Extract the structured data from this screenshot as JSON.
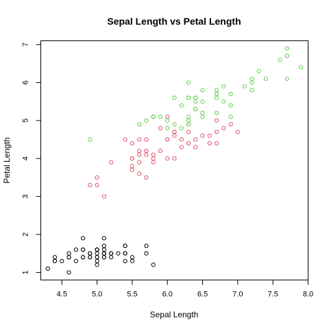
{
  "chart_data": {
    "type": "scatter",
    "title": "Sepal Length vs Petal Length",
    "xlabel": "Sepal Length",
    "ylabel": "Petal Length",
    "xlim": [
      4.2,
      8.0
    ],
    "ylim": [
      0.8,
      7.1
    ],
    "xticks": [
      4.5,
      5.0,
      5.5,
      6.0,
      6.5,
      7.0,
      7.5,
      8.0
    ],
    "xtick_labels": [
      "4.5",
      "5.0",
      "5.5",
      "6.0",
      "6.5",
      "7.0",
      "7.5",
      "8.0"
    ],
    "yticks": [
      1,
      2,
      3,
      4,
      5,
      6,
      7
    ],
    "ytick_labels": [
      "1",
      "2",
      "3",
      "4",
      "5",
      "6",
      "7"
    ],
    "grid": false,
    "series": [
      {
        "color": "#000000",
        "marker": "open-circle",
        "x": [
          5.1,
          4.9,
          4.7,
          4.6,
          5.0,
          5.4,
          4.6,
          5.0,
          4.4,
          4.9,
          5.4,
          4.8,
          4.8,
          4.3,
          5.8,
          5.7,
          5.4,
          5.1,
          5.7,
          5.1,
          5.4,
          5.1,
          4.6,
          5.1,
          4.8,
          5.0,
          5.0,
          5.2,
          5.2,
          4.7,
          4.8,
          5.4,
          5.2,
          5.5,
          4.9,
          5.0,
          5.5,
          4.9,
          4.4,
          5.1,
          5.0,
          4.5,
          4.4,
          5.0,
          5.1,
          4.8,
          5.1,
          4.6,
          5.3,
          5.0
        ],
        "y": [
          1.4,
          1.4,
          1.3,
          1.5,
          1.4,
          1.7,
          1.4,
          1.5,
          1.4,
          1.5,
          1.5,
          1.6,
          1.4,
          1.1,
          1.2,
          1.5,
          1.3,
          1.4,
          1.7,
          1.5,
          1.7,
          1.5,
          1.0,
          1.7,
          1.9,
          1.6,
          1.6,
          1.5,
          1.4,
          1.6,
          1.6,
          1.5,
          1.5,
          1.4,
          1.5,
          1.2,
          1.3,
          1.4,
          1.3,
          1.5,
          1.3,
          1.3,
          1.3,
          1.6,
          1.9,
          1.4,
          1.6,
          1.4,
          1.5,
          1.4
        ]
      },
      {
        "color": "#DF536B",
        "marker": "open-circle",
        "x": [
          7.0,
          6.4,
          6.9,
          5.5,
          6.5,
          5.7,
          6.3,
          4.9,
          6.6,
          5.2,
          5.0,
          5.9,
          6.0,
          6.1,
          5.6,
          6.7,
          5.6,
          5.8,
          6.2,
          5.6,
          5.9,
          6.1,
          6.3,
          6.1,
          6.4,
          6.6,
          6.8,
          6.7,
          6.0,
          5.7,
          5.5,
          5.5,
          5.8,
          6.0,
          5.4,
          6.0,
          6.7,
          6.3,
          5.6,
          5.5,
          5.5,
          6.1,
          5.8,
          5.0,
          5.6,
          5.7,
          5.7,
          6.2,
          5.1,
          5.7
        ],
        "y": [
          4.7,
          4.5,
          4.9,
          4.0,
          4.6,
          4.5,
          4.7,
          3.3,
          4.6,
          3.9,
          3.5,
          4.2,
          4.0,
          4.7,
          3.6,
          4.4,
          4.5,
          4.1,
          4.5,
          3.9,
          4.8,
          4.0,
          4.9,
          4.7,
          4.3,
          4.4,
          4.8,
          5.0,
          4.5,
          3.5,
          3.8,
          3.7,
          3.9,
          5.1,
          4.5,
          4.5,
          4.7,
          4.4,
          4.1,
          4.0,
          4.4,
          4.6,
          4.0,
          3.3,
          4.2,
          4.2,
          4.2,
          4.3,
          3.0,
          4.1
        ]
      },
      {
        "color": "#61D04F",
        "marker": "open-circle",
        "x": [
          6.3,
          5.8,
          7.1,
          6.3,
          6.5,
          7.6,
          4.9,
          7.3,
          6.7,
          7.2,
          6.5,
          6.4,
          6.8,
          5.7,
          5.8,
          6.4,
          6.5,
          7.7,
          7.7,
          6.0,
          6.9,
          5.6,
          7.7,
          6.3,
          6.7,
          7.2,
          6.2,
          6.1,
          6.4,
          7.2,
          7.4,
          7.9,
          6.4,
          6.3,
          6.1,
          7.7,
          6.3,
          6.4,
          6.0,
          6.9,
          6.7,
          6.9,
          5.8,
          6.8,
          6.7,
          6.7,
          6.3,
          6.5,
          6.2,
          5.9
        ],
        "y": [
          6.0,
          5.1,
          5.9,
          5.6,
          5.8,
          6.6,
          4.5,
          6.3,
          5.8,
          6.1,
          5.1,
          5.3,
          5.5,
          5.0,
          5.1,
          5.3,
          5.5,
          6.7,
          6.9,
          5.0,
          5.7,
          4.9,
          6.7,
          4.9,
          5.7,
          6.0,
          4.8,
          4.9,
          5.6,
          5.8,
          6.1,
          6.4,
          5.6,
          5.1,
          5.6,
          6.1,
          5.6,
          5.5,
          4.8,
          5.4,
          5.6,
          5.1,
          5.1,
          5.9,
          5.7,
          5.2,
          5.0,
          5.2,
          5.4,
          5.1
        ]
      }
    ]
  }
}
